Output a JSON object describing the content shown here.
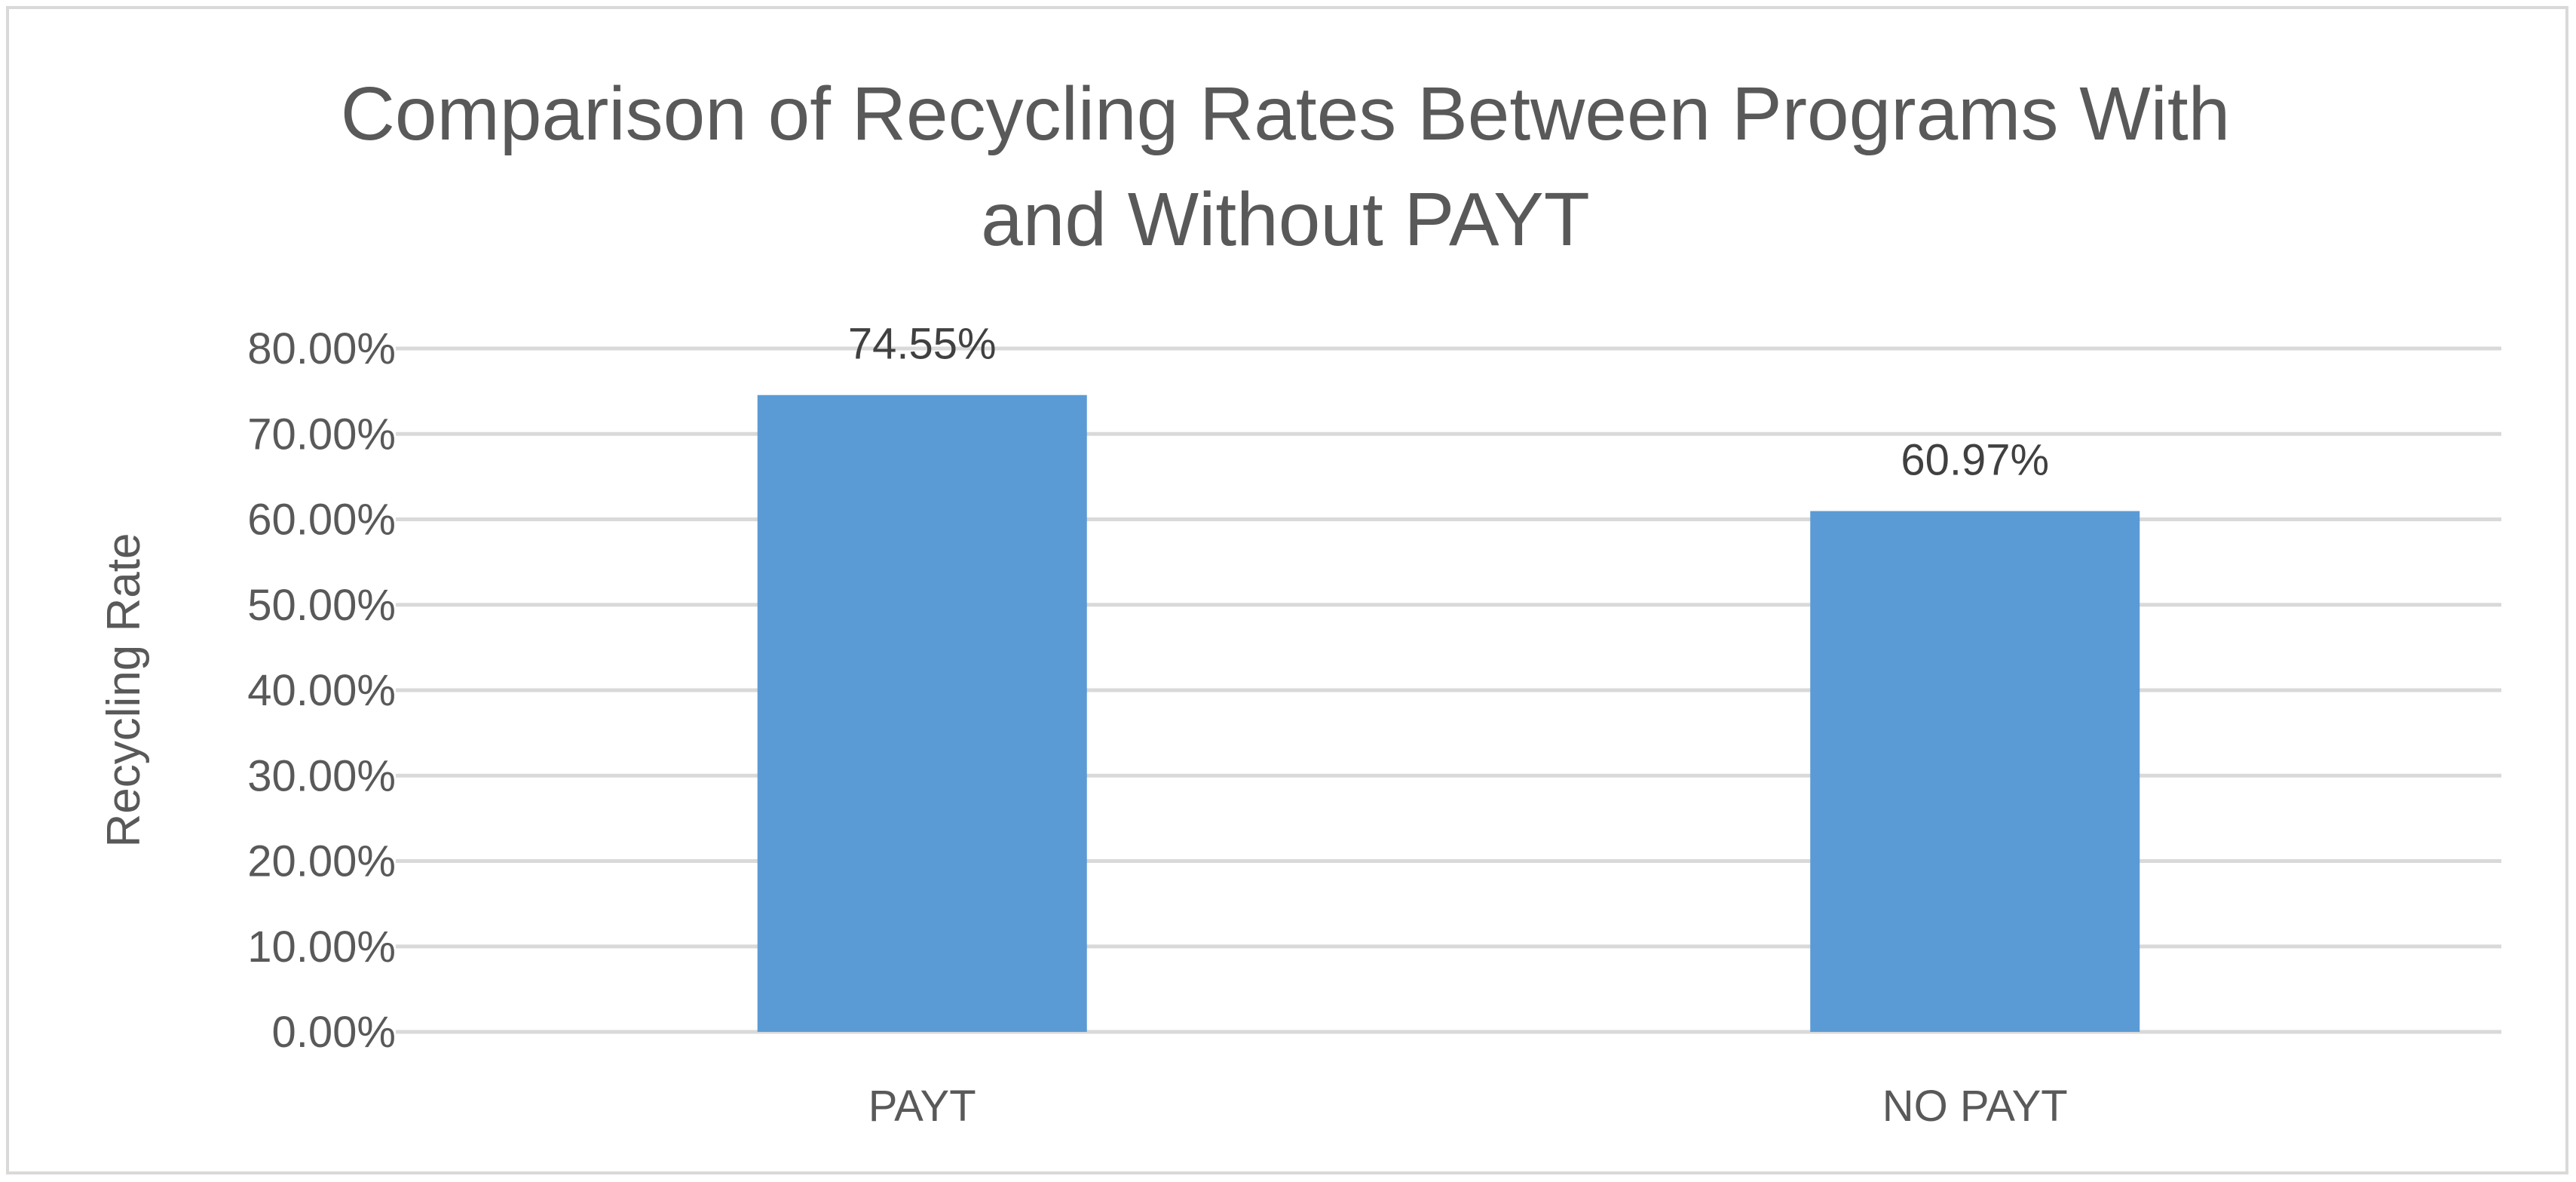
{
  "chart_data": {
    "type": "bar",
    "title_lines": [
      "Comparison of Recycling Rates Between Programs With",
      "and Without PAYT"
    ],
    "xlabel": "",
    "ylabel": "Recycling Rate",
    "categories": [
      "PAYT",
      "NO PAYT"
    ],
    "values": [
      0.7455,
      0.6097
    ],
    "data_labels": [
      "74.55%",
      "60.97%"
    ],
    "ylim": [
      0,
      0.8
    ],
    "yticks": [
      0,
      0.1,
      0.2,
      0.3,
      0.4,
      0.5,
      0.6,
      0.7,
      0.8
    ],
    "ytick_labels": [
      "0.00%",
      "10.00%",
      "20.00%",
      "30.00%",
      "40.00%",
      "50.00%",
      "60.00%",
      "70.00%",
      "80.00%"
    ],
    "grid": true,
    "legend": "none",
    "colors": {
      "bar": "#5b9bd5",
      "grid": "#d9d9d9",
      "text": "#595959",
      "border": "#d9d9d9"
    }
  }
}
